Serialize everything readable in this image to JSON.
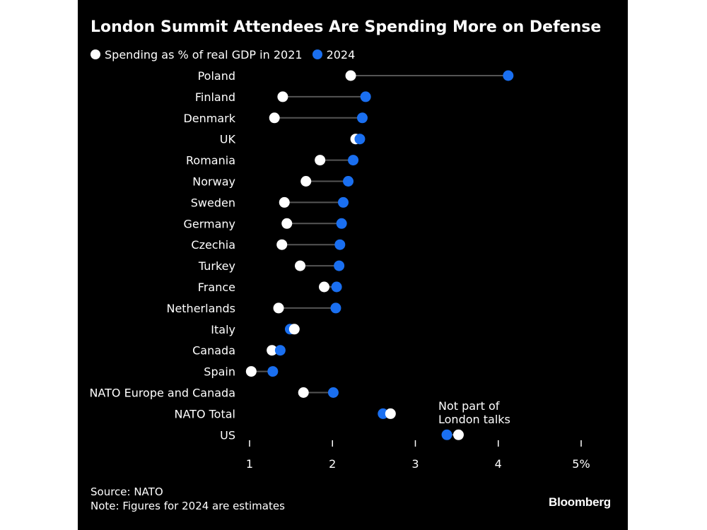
{
  "title": "London Summit Attendees Are Spending More on Defense",
  "legend": {
    "series_2021": "Spending as % of real GDP in 2021",
    "series_2024": "2024"
  },
  "colors": {
    "background": "#000000",
    "series_2021": "#ffffff",
    "series_2024": "#1a6ff0",
    "connector": "#555555",
    "text": "#ffffff"
  },
  "annotation": {
    "line1": "Not part of",
    "line2": "London talks"
  },
  "footer": {
    "source": "Source: NATO",
    "note": "Note: Figures for 2024 are estimates"
  },
  "brand": "Bloomberg",
  "chart_data": {
    "type": "scatter",
    "subtype": "dumbbell",
    "title": "London Summit Attendees Are Spending More on Defense",
    "xlabel": "",
    "ylabel": "",
    "xlim": [
      1,
      5
    ],
    "x_ticks": [
      1,
      2,
      3,
      4,
      5
    ],
    "x_tick_labels": [
      "1",
      "2",
      "3",
      "4",
      "5%"
    ],
    "grid": false,
    "legend_position": "top-left",
    "categories": [
      "Poland",
      "Finland",
      "Denmark",
      "UK",
      "Romania",
      "Norway",
      "Sweden",
      "Germany",
      "Czechia",
      "Turkey",
      "France",
      "Netherlands",
      "Italy",
      "Canada",
      "Spain",
      "NATO Europe and Canada",
      "NATO Total",
      "US"
    ],
    "series": [
      {
        "name": "Spending as % of real GDP in 2021",
        "values": [
          2.22,
          1.4,
          1.3,
          2.28,
          1.85,
          1.68,
          1.42,
          1.45,
          1.39,
          1.61,
          1.9,
          1.35,
          1.54,
          1.27,
          1.02,
          1.65,
          2.7,
          3.52
        ]
      },
      {
        "name": "2024",
        "values": [
          4.12,
          2.4,
          2.36,
          2.33,
          2.25,
          2.19,
          2.13,
          2.11,
          2.09,
          2.08,
          2.05,
          2.04,
          1.49,
          1.37,
          1.28,
          2.01,
          2.61,
          3.38
        ]
      }
    ]
  }
}
